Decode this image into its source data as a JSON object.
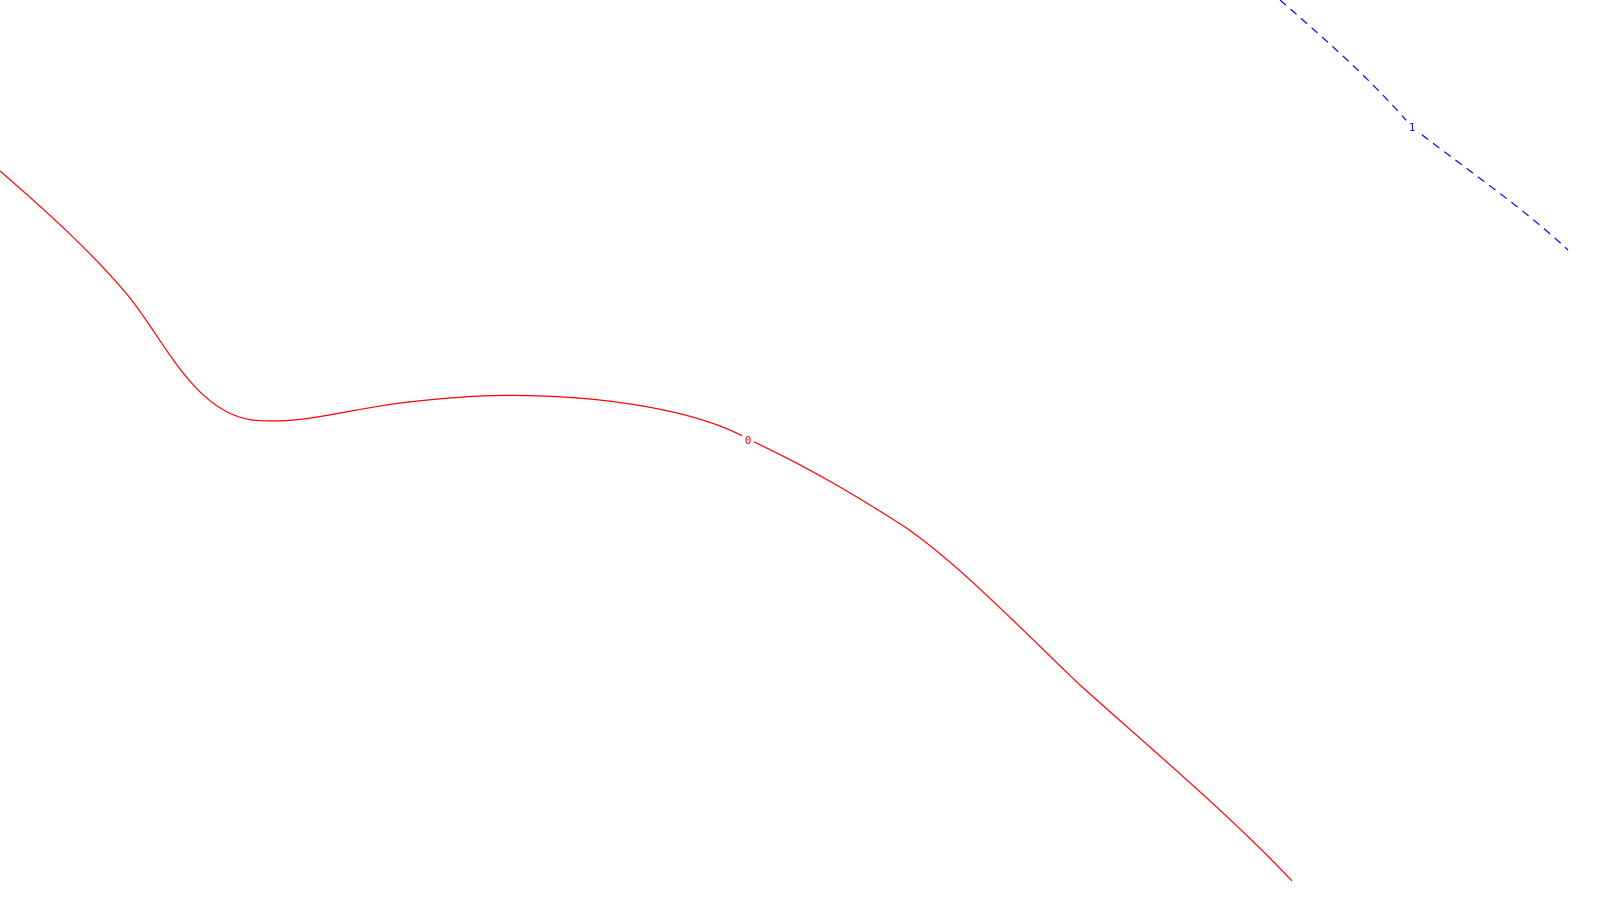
{
  "colors": {
    "background": "#ffffff",
    "curve_0": "#ff0000",
    "curve_1": "#0000ff"
  },
  "curves": [
    {
      "label": "0",
      "color": "#ff0000",
      "line_style": "solid"
    },
    {
      "label": "1",
      "color": "#0000ff",
      "line_style": "dashed"
    }
  ]
}
